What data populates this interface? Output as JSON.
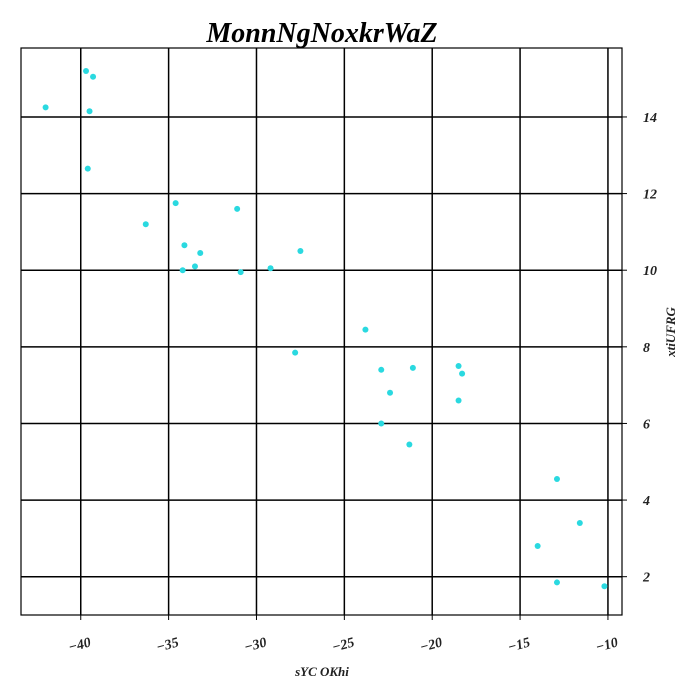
{
  "chart_data": {
    "type": "scatter",
    "title": "MonnNgNoxkrWaZ",
    "xlabel": "sYC OKhi",
    "ylabel": "xtiUFRG",
    "xlim": [
      -43.4,
      -9.2
    ],
    "ylim": [
      1.0,
      15.8
    ],
    "xticks": [
      -40,
      -35,
      -30,
      -25,
      -20,
      -15,
      -10
    ],
    "yticks": [
      2,
      4,
      6,
      8,
      10,
      12,
      14
    ],
    "xtick_labels": [
      "−40",
      "−35",
      "−30",
      "−25",
      "−20",
      "−15",
      "−10"
    ],
    "ytick_labels": [
      "2",
      "4",
      "6",
      "8",
      "10",
      "12",
      "14"
    ],
    "grid": true,
    "y_axis_side": "right",
    "marker_color": "#2ad9e0",
    "points": [
      {
        "x": -39.7,
        "y": 15.2
      },
      {
        "x": -39.3,
        "y": 15.05
      },
      {
        "x": -42.0,
        "y": 14.25
      },
      {
        "x": -39.5,
        "y": 14.15
      },
      {
        "x": -39.6,
        "y": 12.65
      },
      {
        "x": -34.6,
        "y": 11.75
      },
      {
        "x": -31.1,
        "y": 11.6
      },
      {
        "x": -36.3,
        "y": 11.2
      },
      {
        "x": -34.1,
        "y": 10.65
      },
      {
        "x": -33.2,
        "y": 10.45
      },
      {
        "x": -27.5,
        "y": 10.5
      },
      {
        "x": -33.5,
        "y": 10.1
      },
      {
        "x": -34.2,
        "y": 10.0
      },
      {
        "x": -29.2,
        "y": 10.05
      },
      {
        "x": -30.9,
        "y": 9.95
      },
      {
        "x": -23.8,
        "y": 8.45
      },
      {
        "x": -27.8,
        "y": 7.85
      },
      {
        "x": -22.9,
        "y": 7.4
      },
      {
        "x": -21.1,
        "y": 7.45
      },
      {
        "x": -18.5,
        "y": 7.5
      },
      {
        "x": -18.3,
        "y": 7.3
      },
      {
        "x": -22.4,
        "y": 6.8
      },
      {
        "x": -18.5,
        "y": 6.6
      },
      {
        "x": -22.9,
        "y": 6.0
      },
      {
        "x": -21.3,
        "y": 5.45
      },
      {
        "x": -12.9,
        "y": 4.55
      },
      {
        "x": -11.6,
        "y": 3.4
      },
      {
        "x": -14.0,
        "y": 2.8
      },
      {
        "x": -12.9,
        "y": 1.85
      },
      {
        "x": -10.2,
        "y": 1.75
      }
    ]
  }
}
